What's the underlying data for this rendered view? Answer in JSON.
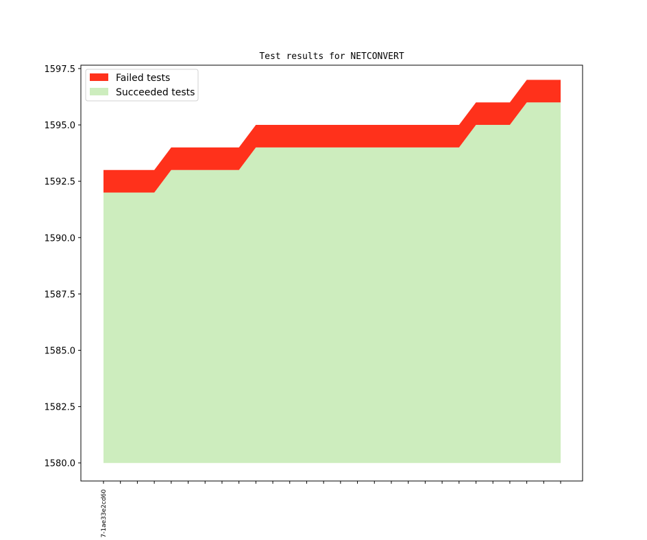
{
  "chart_data": {
    "type": "area",
    "title": "Test results for NETCONVERT",
    "xlabel": "",
    "ylabel": "",
    "ylim": [
      1579.2,
      1597.65
    ],
    "yticks": [
      1580.0,
      1582.5,
      1585.0,
      1587.5,
      1590.0,
      1592.5,
      1595.0,
      1597.5
    ],
    "ytick_labels": [
      "1580.0",
      "1582.5",
      "1585.0",
      "1587.5",
      "1590.0",
      "1592.5",
      "1595.0",
      "1597.5"
    ],
    "x_count": 28,
    "x_tick_labels": [
      "7-1ae33e2cd60"
    ],
    "baseline": 1580,
    "series": [
      {
        "name": "Succeeded tests",
        "color": "#cdedbe",
        "values": [
          1592,
          1592,
          1592,
          1592,
          1593,
          1593,
          1593,
          1593,
          1593,
          1594,
          1594,
          1594,
          1594,
          1594,
          1594,
          1594,
          1594,
          1594,
          1594,
          1594,
          1594,
          1594,
          1595,
          1595,
          1595,
          1596,
          1596,
          1596
        ]
      },
      {
        "name": "Failed tests",
        "color": "#ff311b",
        "values": [
          1,
          1,
          1,
          1,
          1,
          1,
          1,
          1,
          1,
          1,
          1,
          1,
          1,
          1,
          1,
          1,
          1,
          1,
          1,
          1,
          1,
          1,
          1,
          1,
          1,
          1,
          1,
          1
        ]
      }
    ],
    "legend": {
      "placement": "upper-left",
      "entries": [
        "Failed tests",
        "Succeeded tests"
      ]
    },
    "grid": false
  }
}
